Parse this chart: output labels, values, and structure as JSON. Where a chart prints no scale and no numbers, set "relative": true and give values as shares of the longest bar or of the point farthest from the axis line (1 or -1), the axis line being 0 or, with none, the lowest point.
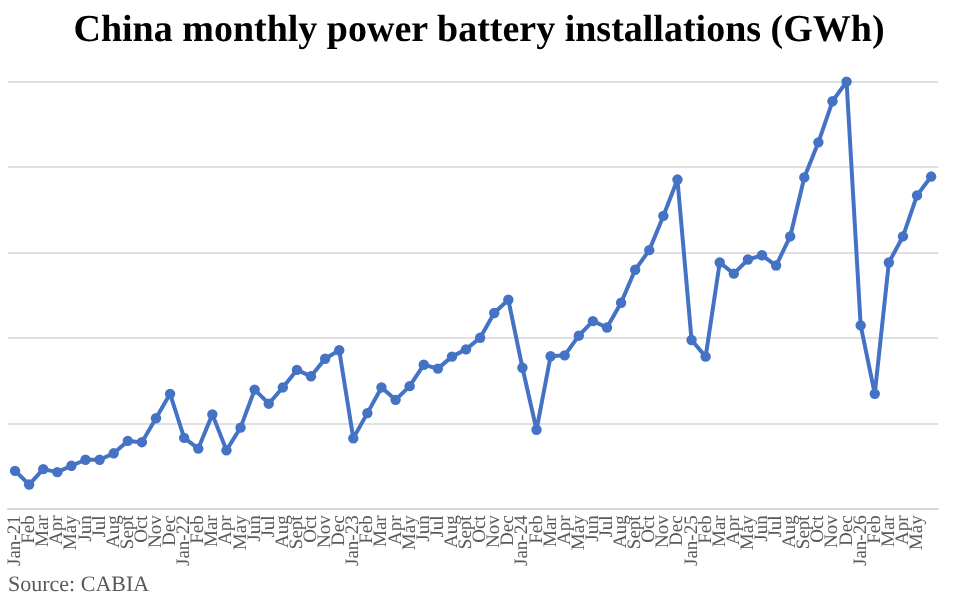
{
  "chart_data": {
    "type": "line",
    "title": "China monthly power battery installations (GWh)",
    "categories": [
      "Jan-21",
      "Feb",
      "Mar",
      "Apr",
      "May",
      "Jun",
      "Jul",
      "Aug",
      "Sept",
      "Oct",
      "Nov",
      "Dec",
      "Jan-22",
      "Feb",
      "Mar",
      "Apr",
      "May",
      "Jun",
      "Jul",
      "Aug",
      "Sept",
      "Oct",
      "Nov",
      "Dec",
      "Jan-23",
      "Feb",
      "Mar",
      "Apr",
      "May",
      "Jun",
      "Jul",
      "Aug",
      "Sept",
      "Oct",
      "Nov",
      "Dec",
      "Jan-24",
      "Feb",
      "Mar",
      "Apr",
      "May",
      "Jun",
      "Jul",
      "Aug",
      "Sept",
      "Oct",
      "Nov",
      "Dec",
      "Jan-25",
      "Feb",
      "Mar",
      "Apr",
      "May",
      "Jun",
      "Jul",
      "Aug",
      "Sept",
      "Oct",
      "Nov",
      "Dec",
      "Jan-26",
      "Feb",
      "Mar",
      "Apr",
      "May",
      null
    ],
    "series": [
      {
        "color": "#4472c4",
        "values": [
          0.09,
          0.058,
          0.094,
          0.087,
          0.102,
          0.116,
          0.116,
          0.131,
          0.16,
          0.157,
          0.213,
          0.27,
          0.167,
          0.142,
          0.222,
          0.138,
          0.191,
          0.28,
          0.247,
          0.285,
          0.326,
          0.311,
          0.352,
          0.372,
          0.166,
          0.225,
          0.285,
          0.256,
          0.288,
          0.338,
          0.329,
          0.357,
          0.374,
          0.401,
          0.459,
          0.49,
          0.331,
          0.186,
          0.358,
          0.36,
          0.406,
          0.44,
          0.425,
          0.483,
          0.56,
          0.606,
          0.686,
          0.771,
          0.396,
          0.357,
          0.577,
          0.551,
          0.584,
          0.594,
          0.57,
          0.638,
          0.776,
          0.858,
          0.954,
          1,
          0.43,
          0.27,
          0.577,
          0.638,
          0.734,
          0.778
        ]
      }
    ],
    "relative": true,
    "grid": "y",
    "legend": false,
    "marker": "circle",
    "line_style": "solid",
    "annotations": [
      "Source: CABIA"
    ]
  }
}
